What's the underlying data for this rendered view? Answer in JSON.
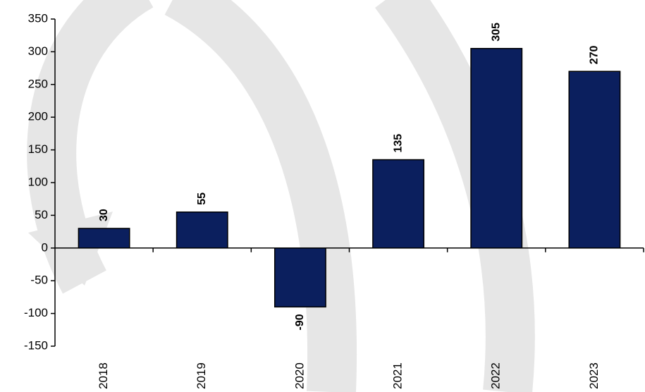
{
  "chart_data": {
    "type": "bar",
    "categories": [
      "2018",
      "2019",
      "2020",
      "2021",
      "2022",
      "2023"
    ],
    "values": [
      30,
      55,
      -90,
      135,
      305,
      270
    ],
    "color": "#0b1f5e",
    "ylim": [
      -150,
      350
    ],
    "yticks": [
      -150,
      -100,
      -50,
      0,
      50,
      100,
      150,
      200,
      250,
      300,
      350
    ],
    "grid": false
  }
}
